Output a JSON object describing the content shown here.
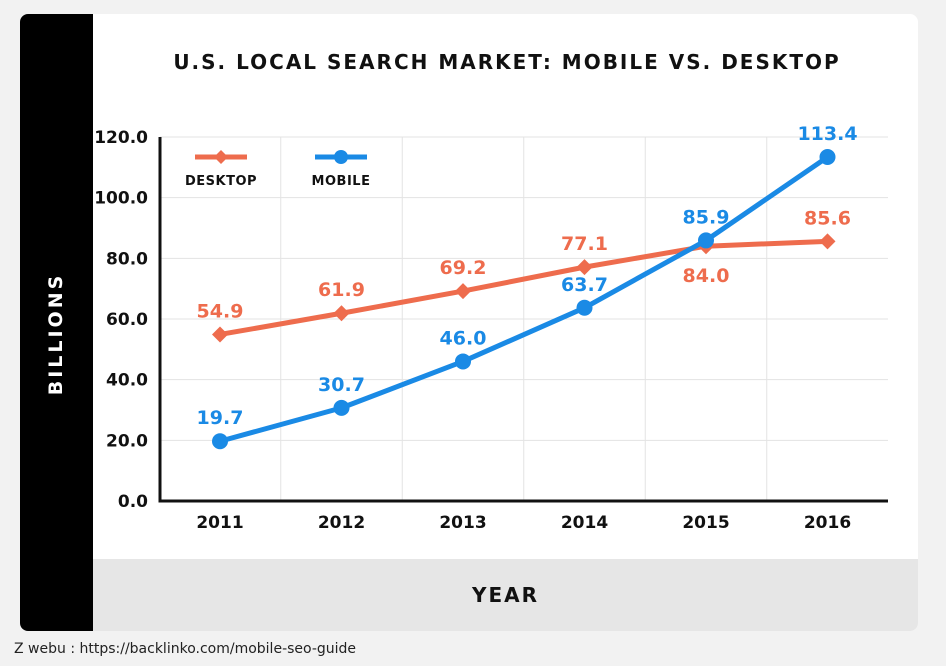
{
  "chart_data": {
    "type": "line",
    "title": "U.S. LOCAL SEARCH MARKET: MOBILE VS. DESKTOP",
    "xlabel": "YEAR",
    "ylabel": "BILLIONS",
    "x": [
      "2011",
      "2012",
      "2013",
      "2014",
      "2015",
      "2016"
    ],
    "ylim": [
      0,
      120
    ],
    "yticks": [
      "0.0",
      "20.0",
      "40.0",
      "60.0",
      "80.0",
      "100.0",
      "120.0"
    ],
    "grid": true,
    "legend_position": "top-left",
    "series": [
      {
        "name": "DESKTOP",
        "color": "#ee6c4d",
        "marker": "diamond",
        "values": [
          54.9,
          61.9,
          69.2,
          77.1,
          84.0,
          85.6
        ],
        "labels": [
          "54.9",
          "61.9",
          "69.2",
          "77.1",
          "84.0",
          "85.6"
        ]
      },
      {
        "name": "MOBILE",
        "color": "#1a8ae5",
        "marker": "circle",
        "values": [
          19.7,
          30.7,
          46.0,
          63.7,
          85.9,
          113.4
        ],
        "labels": [
          "19.7",
          "30.7",
          "46.0",
          "63.7",
          "85.9",
          "113.4"
        ]
      }
    ]
  },
  "source": "Z webu : https://backlinko.com/mobile-seo-guide"
}
